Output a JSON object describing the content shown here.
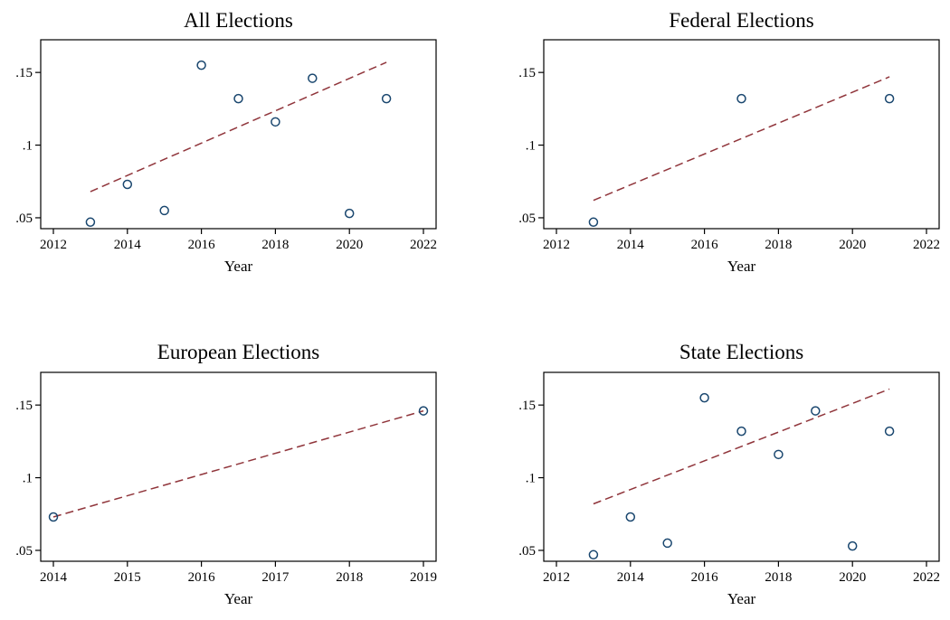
{
  "chart_data": [
    {
      "type": "scatter",
      "title": "All Elections",
      "xlabel": "Year",
      "ylabel": "",
      "xlim": [
        2012,
        2022
      ],
      "ylim": [
        0.045,
        0.17
      ],
      "xticks": [
        2012,
        2014,
        2016,
        2018,
        2020,
        2022
      ],
      "xtick_labels": [
        "2012",
        "2014",
        "2016",
        "2018",
        "2020",
        "2022"
      ],
      "yticks": [
        0.05,
        0.1,
        0.15
      ],
      "ytick_labels": [
        ".05",
        ".1",
        ".15"
      ],
      "points": [
        {
          "x": 2013,
          "y": 0.047
        },
        {
          "x": 2014,
          "y": 0.073
        },
        {
          "x": 2015,
          "y": 0.055
        },
        {
          "x": 2016,
          "y": 0.155
        },
        {
          "x": 2017,
          "y": 0.132
        },
        {
          "x": 2018,
          "y": 0.116
        },
        {
          "x": 2019,
          "y": 0.146
        },
        {
          "x": 2020,
          "y": 0.053
        },
        {
          "x": 2021,
          "y": 0.132
        }
      ],
      "fit_line": {
        "x": [
          2013,
          2021
        ],
        "y": [
          0.068,
          0.157
        ]
      },
      "grid": false
    },
    {
      "type": "scatter",
      "title": "Federal Elections",
      "xlabel": "Year",
      "ylabel": "",
      "xlim": [
        2012,
        2022
      ],
      "ylim": [
        0.045,
        0.17
      ],
      "xticks": [
        2012,
        2014,
        2016,
        2018,
        2020,
        2022
      ],
      "xtick_labels": [
        "2012",
        "2014",
        "2016",
        "2018",
        "2020",
        "2022"
      ],
      "yticks": [
        0.05,
        0.1,
        0.15
      ],
      "ytick_labels": [
        ".05",
        ".1",
        ".15"
      ],
      "points": [
        {
          "x": 2013,
          "y": 0.047
        },
        {
          "x": 2017,
          "y": 0.132
        },
        {
          "x": 2021,
          "y": 0.132
        }
      ],
      "fit_line": {
        "x": [
          2013,
          2021
        ],
        "y": [
          0.062,
          0.147
        ]
      },
      "grid": false
    },
    {
      "type": "scatter",
      "title": "European Elections",
      "xlabel": "Year",
      "ylabel": "",
      "xlim": [
        2014,
        2019
      ],
      "ylim": [
        0.045,
        0.17
      ],
      "xticks": [
        2014,
        2015,
        2016,
        2017,
        2018,
        2019
      ],
      "xtick_labels": [
        "2014",
        "2015",
        "2016",
        "2017",
        "2018",
        "2019"
      ],
      "yticks": [
        0.05,
        0.1,
        0.15
      ],
      "ytick_labels": [
        ".05",
        ".1",
        ".15"
      ],
      "points": [
        {
          "x": 2014,
          "y": 0.073
        },
        {
          "x": 2019,
          "y": 0.146
        }
      ],
      "fit_line": {
        "x": [
          2014,
          2019
        ],
        "y": [
          0.073,
          0.146
        ]
      },
      "grid": false
    },
    {
      "type": "scatter",
      "title": "State Elections",
      "xlabel": "Year",
      "ylabel": "",
      "xlim": [
        2012,
        2022
      ],
      "ylim": [
        0.045,
        0.17
      ],
      "xticks": [
        2012,
        2014,
        2016,
        2018,
        2020,
        2022
      ],
      "xtick_labels": [
        "2012",
        "2014",
        "2016",
        "2018",
        "2020",
        "2022"
      ],
      "yticks": [
        0.05,
        0.1,
        0.15
      ],
      "ytick_labels": [
        ".05",
        ".1",
        ".15"
      ],
      "points": [
        {
          "x": 2013,
          "y": 0.047
        },
        {
          "x": 2014,
          "y": 0.073
        },
        {
          "x": 2015,
          "y": 0.055
        },
        {
          "x": 2016,
          "y": 0.155
        },
        {
          "x": 2017,
          "y": 0.132
        },
        {
          "x": 2018,
          "y": 0.116
        },
        {
          "x": 2019,
          "y": 0.146
        },
        {
          "x": 2020,
          "y": 0.053
        },
        {
          "x": 2021,
          "y": 0.132
        }
      ],
      "fit_line": {
        "x": [
          2013,
          2021
        ],
        "y": [
          0.082,
          0.161
        ]
      },
      "grid": false
    }
  ],
  "colors": {
    "marker_stroke": "#1a476f",
    "fit_line": "#90353b",
    "axis": "#000000",
    "background": "#ffffff"
  }
}
